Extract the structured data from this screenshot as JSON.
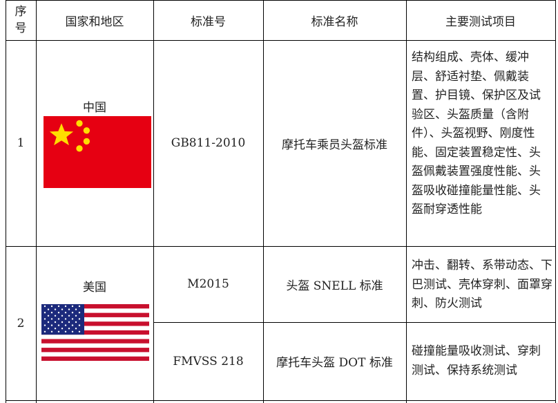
{
  "headers": [
    "序号",
    "国家和地区",
    "标准号",
    "标准名称",
    "主要测试项目"
  ],
  "rows": [
    {
      "index": "1",
      "country": "中国",
      "flag": "china-flag",
      "standards": [
        {
          "number": "GB811-2010",
          "name": "摩托车乘员头盔标准",
          "tests": "结构组成、壳体、缓冲层、舒适衬垫、佩戴装置、护目镜、保护区及试验区、头盔质量（含附件）、头盔视野、刚度性能、固定装置稳定性、头盔佩戴装置强度性能、头盔吸收碰撞能量性能、头盔耐穿透性能"
        }
      ]
    },
    {
      "index": "2",
      "country": "美国",
      "flag": "usa-flag",
      "standards": [
        {
          "number": "M2015",
          "name": "头盔 SNELL 标准",
          "tests": "冲击、翻转、系带动态、下巴测试、壳体穿刺、面罩穿刺、防火测试"
        },
        {
          "number": "FMVSS 218",
          "name": "摩托车头盔 DOT 标准",
          "tests": "碰撞能量吸收测试、穿刺测试、保持系统测试"
        }
      ]
    }
  ],
  "colors": {
    "china_red": "#e60012",
    "china_star": "#ffde00",
    "usa_red": "#c8102e",
    "usa_blue": "#1c2a7c"
  }
}
